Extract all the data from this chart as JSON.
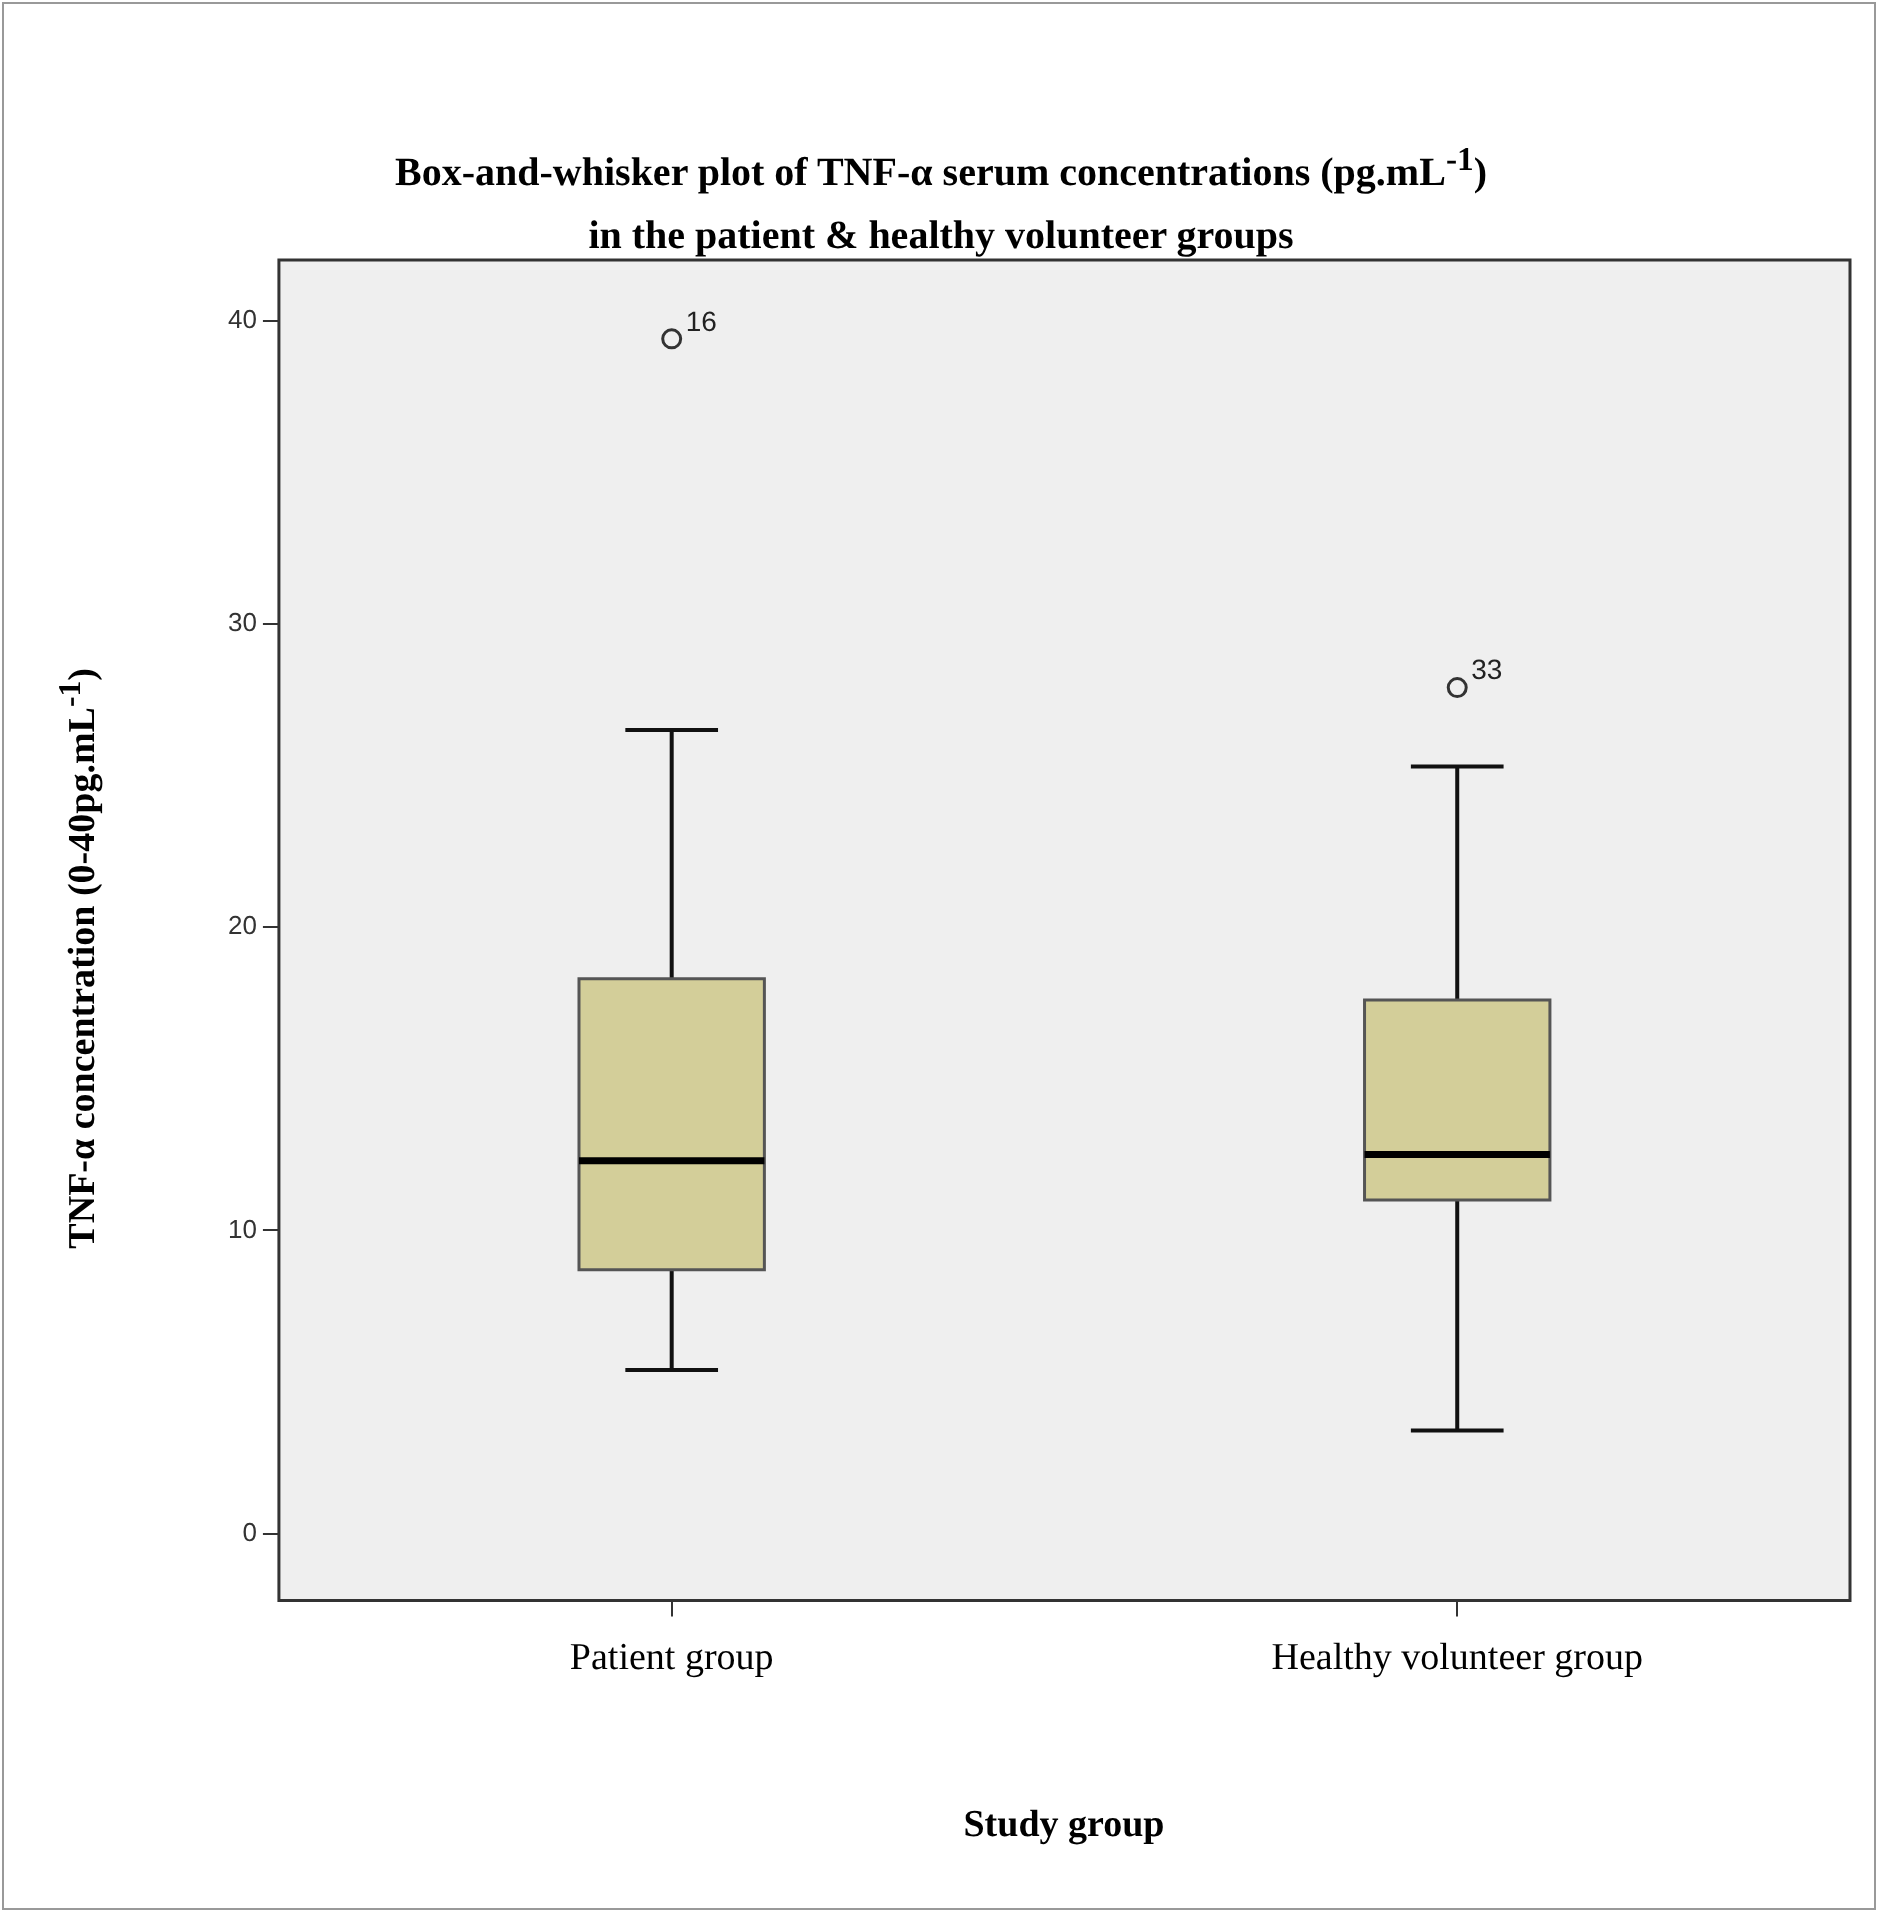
{
  "chart_data": {
    "type": "box",
    "title": "Box-and-whisker plot of TNF-α serum concentrations (pg.mL$^{-1}$)\nin the patient & healthy volunteer groups",
    "xlabel": "Study group",
    "ylabel": "TNF-α concentration (0-40pg.mL$^{-1}$)",
    "categories": [
      "Patient group",
      "Healthy volunteer group"
    ],
    "color": "#d3ce99",
    "boxes": [
      {
        "low": 5.4,
        "q1": 8.7,
        "median": 12.3,
        "q3": 18.3,
        "high": 26.5,
        "outliers": [
          39.4
        ]
      },
      {
        "low": 3.4,
        "q1": 11.0,
        "median": 12.5,
        "q3": 17.6,
        "high": 25.3,
        "outliers": [
          27.9
        ]
      }
    ],
    "ylim": [
      -2.2,
      42
    ],
    "yticks": [
      0,
      10,
      20,
      30,
      40
    ],
    "annotations": [
      "16",
      "33"
    ]
  }
}
